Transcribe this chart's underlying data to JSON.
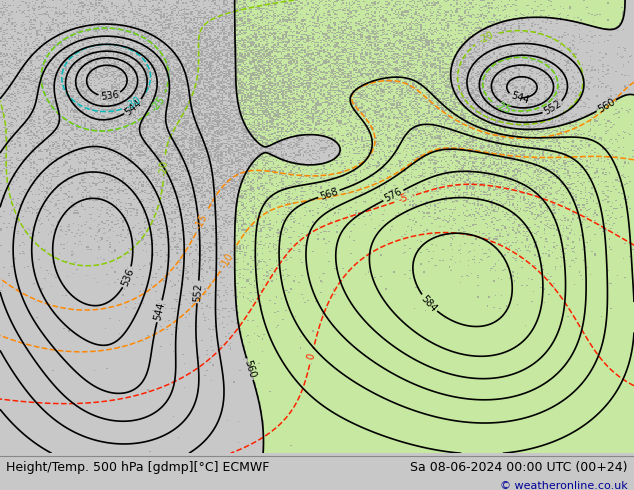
{
  "title_left": "Height/Temp. 500 hPa [gdmp][°C] ECMWF",
  "title_right": "Sa 08-06-2024 00:00 UTC (00+24)",
  "copyright": "© weatheronline.co.uk",
  "bg_color": "#c8c8c8",
  "map_bg": "#c8c8c8",
  "green_color_rgba": [
    0.78,
    0.91,
    0.63,
    1.0
  ],
  "land_gray": "#b8b8b8",
  "figsize": [
    6.34,
    4.9
  ],
  "dpi": 100,
  "title_fontsize": 9,
  "copyright_fontsize": 8,
  "contour_color_black": "#000000",
  "contour_color_orange": "#ff8800",
  "contour_color_red": "#ff2200",
  "contour_color_green_dashed": "#88cc00",
  "contour_color_cyan": "#00bbbb"
}
